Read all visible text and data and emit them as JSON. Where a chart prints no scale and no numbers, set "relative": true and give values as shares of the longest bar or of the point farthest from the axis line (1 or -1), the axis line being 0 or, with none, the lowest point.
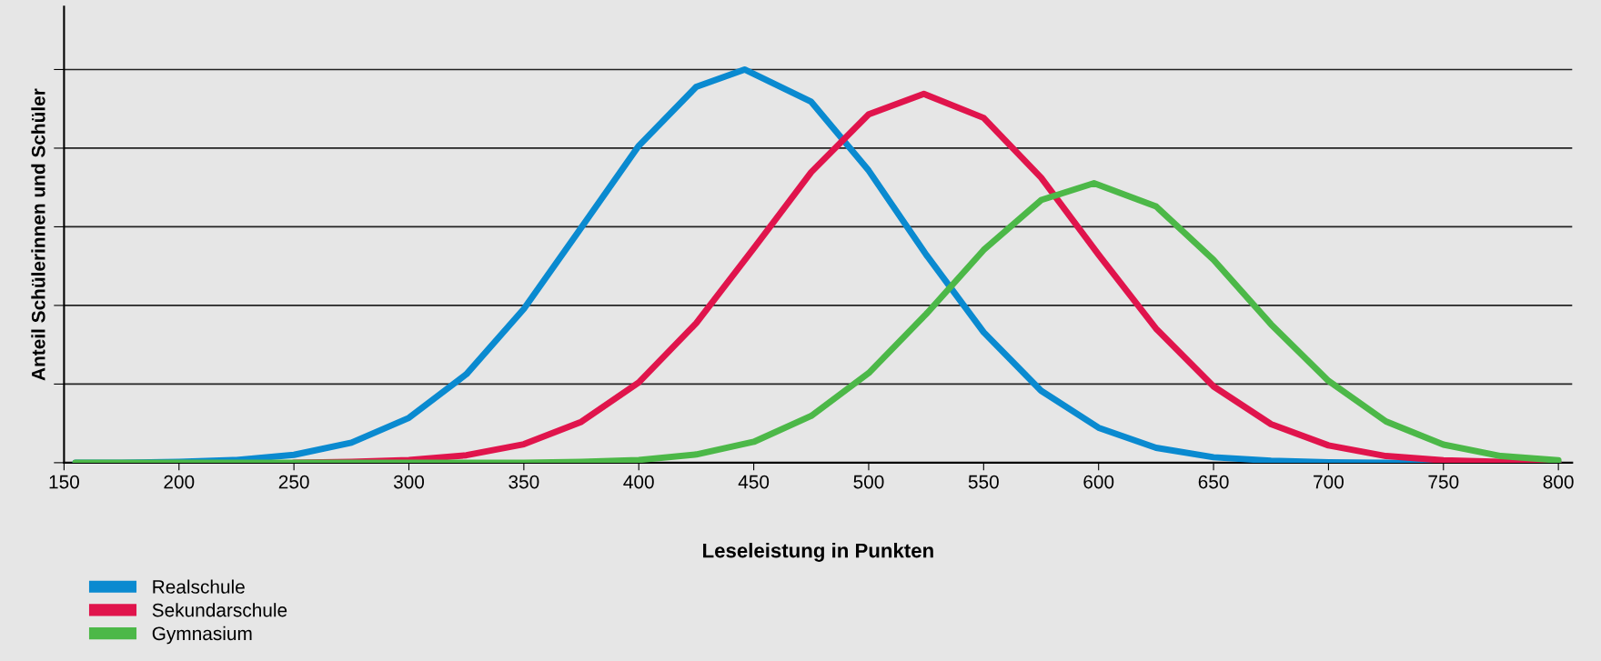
{
  "chart_data": {
    "type": "line",
    "xlabel": "Leseleistung in Punkten",
    "ylabel": "Anteil Schülerinnen und Schüler",
    "relative": true,
    "xlim": [
      150,
      806
    ],
    "xticks": [
      150,
      200,
      250,
      300,
      350,
      400,
      450,
      500,
      550,
      600,
      650,
      700,
      750,
      800
    ],
    "tick_labels": "x",
    "grid": "y",
    "legend": "bottom left",
    "marker": "none",
    "line_style": "solid",
    "series": [
      {
        "name": "Realschule",
        "color": "#0a8ad0",
        "x": [
          155,
          175,
          200,
          225,
          250,
          275,
          300,
          325,
          350,
          375,
          400,
          425,
          446,
          475,
          500,
          525,
          550,
          575,
          600,
          625,
          650,
          675,
          700,
          725,
          750,
          775,
          800
        ],
        "values": [
          0,
          0,
          0.002,
          0.007,
          0.02,
          0.051,
          0.114,
          0.225,
          0.391,
          0.598,
          0.806,
          0.956,
          1,
          0.918,
          0.743,
          0.529,
          0.332,
          0.183,
          0.089,
          0.038,
          0.014,
          0.005,
          0.001,
          0,
          0,
          0,
          0
        ]
      },
      {
        "name": "Sekundarschule",
        "color": "#e0144c",
        "x": [
          250,
          275,
          300,
          325,
          350,
          375,
          400,
          425,
          450,
          475,
          500,
          524,
          550,
          575,
          600,
          625,
          650,
          675,
          700,
          725,
          750,
          775,
          800
        ],
        "values": [
          0,
          0.002,
          0.007,
          0.019,
          0.047,
          0.104,
          0.204,
          0.355,
          0.545,
          0.739,
          0.886,
          0.938,
          0.877,
          0.725,
          0.529,
          0.341,
          0.194,
          0.098,
          0.044,
          0.017,
          0.006,
          0.002,
          0
        ]
      },
      {
        "name": "Gymnasium",
        "color": "#4cb848",
        "x": [
          155,
          200,
          250,
          300,
          325,
          350,
          375,
          400,
          425,
          450,
          475,
          500,
          525,
          550,
          575,
          598,
          625,
          650,
          675,
          700,
          725,
          750,
          775,
          800
        ],
        "values": [
          0,
          0,
          0,
          0,
          0,
          0,
          0.002,
          0.007,
          0.021,
          0.053,
          0.119,
          0.228,
          0.378,
          0.541,
          0.668,
          0.711,
          0.652,
          0.516,
          0.352,
          0.208,
          0.105,
          0.046,
          0.017,
          0.006
        ]
      }
    ]
  }
}
